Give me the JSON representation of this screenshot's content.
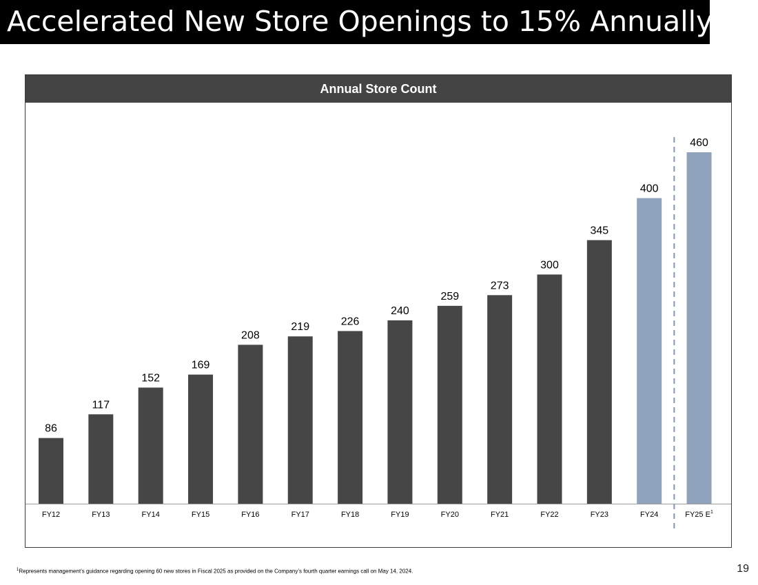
{
  "slide": {
    "title": "Accelerated New Store Openings to 15% Annually",
    "page_number": "19",
    "footnote_marker": "1",
    "footnote_text": "Represents management’s guidance regarding opening 60 new stores in Fiscal 2025 as provided on the Company’s fourth quarter earnings call on May 14, 2024."
  },
  "chart_data": {
    "type": "bar",
    "title": "Annual Store Count",
    "categories": [
      "FY12",
      "FY13",
      "FY14",
      "FY15",
      "FY16",
      "FY17",
      "FY18",
      "FY19",
      "FY20",
      "FY21",
      "FY22",
      "FY23",
      "FY24",
      "FY25 E"
    ],
    "category_superscripts": [
      "",
      "",
      "",
      "",
      "",
      "",
      "",
      "",
      "",
      "",
      "",
      "",
      "",
      "1"
    ],
    "values": [
      86,
      117,
      152,
      169,
      208,
      219,
      226,
      240,
      259,
      273,
      300,
      345,
      400,
      460
    ],
    "colors": [
      "#464646",
      "#464646",
      "#464646",
      "#464646",
      "#464646",
      "#464646",
      "#464646",
      "#464646",
      "#464646",
      "#464646",
      "#464646",
      "#464646",
      "#8fa3bd",
      "#8fa3bd"
    ],
    "ylim": [
      0,
      460
    ],
    "xlabel": "",
    "ylabel": "",
    "grid": false,
    "divider_after_category": "FY24"
  }
}
